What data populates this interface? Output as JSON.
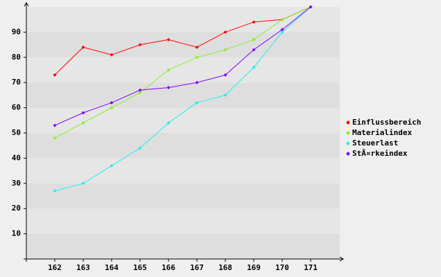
{
  "chart_data": {
    "type": "line",
    "categories": [
      "162",
      "163",
      "164",
      "165",
      "166",
      "167",
      "168",
      "169",
      "170",
      "171"
    ],
    "series": [
      {
        "name": "Einflussbereich",
        "color": "#ff0000",
        "values": [
          73,
          84,
          81,
          85,
          87,
          84,
          90,
          94,
          95,
          100
        ]
      },
      {
        "name": "Materialindex",
        "color": "#88ee22",
        "values": [
          48,
          54,
          60,
          66,
          75,
          80,
          83,
          87,
          95,
          100
        ]
      },
      {
        "name": "Steuerlast",
        "color": "#22eeee",
        "values": [
          27,
          30,
          37,
          44,
          54,
          62,
          65,
          76,
          90,
          100
        ]
      },
      {
        "name": "StÃ¤rkeindex",
        "color": "#7f00ff",
        "values": [
          53,
          58,
          62,
          67,
          68,
          70,
          73,
          83,
          91,
          100
        ]
      }
    ],
    "ylim": [
      0,
      100
    ],
    "yticks": [
      10,
      20,
      30,
      40,
      50,
      60,
      70,
      80,
      90
    ],
    "grid": true,
    "legend": "right"
  }
}
